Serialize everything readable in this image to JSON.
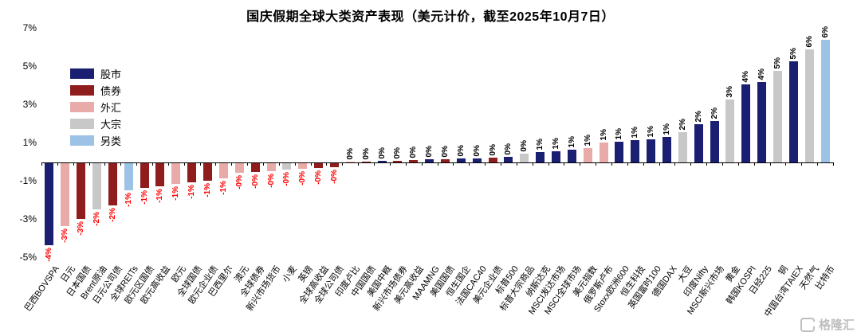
{
  "title": "国庆假期全球大类资产表现（美元计价，截至2025年10月7日）",
  "watermark": "格隆汇",
  "colors": {
    "negative_value": "#FF0000",
    "positive_value": "#000000",
    "axis": "#000000",
    "watermark": "#BEBEBE"
  },
  "legend": [
    {
      "key": "stocks",
      "label": "股市",
      "color": "#1A1F71"
    },
    {
      "key": "bonds",
      "label": "债券",
      "color": "#8F1D1D"
    },
    {
      "key": "fx",
      "label": "外汇",
      "color": "#E8ABA9"
    },
    {
      "key": "commodity",
      "label": "大宗",
      "color": "#C8C8C8"
    },
    {
      "key": "alternative",
      "label": "另类",
      "color": "#9CC2E5"
    }
  ],
  "chart_data": {
    "type": "bar",
    "title": "国庆假期全球大类资产表现（美元计价，截至2025年10月7日）",
    "ylim": [
      -5,
      7
    ],
    "yticks": [
      7,
      5,
      3,
      1,
      -1,
      -3,
      -5
    ],
    "unit": "%",
    "grid": false,
    "legend_position": "top-left",
    "bars": [
      {
        "name": "巴西BOVSPA",
        "category": "stocks",
        "value": -4.3,
        "label": "-4%"
      },
      {
        "name": "日元",
        "category": "fx",
        "value": -3.3,
        "label": "-3%"
      },
      {
        "name": "日本国债",
        "category": "bonds",
        "value": -2.9,
        "label": "-3%"
      },
      {
        "name": "Brent原油",
        "category": "commodity",
        "value": -2.4,
        "label": "-2%"
      },
      {
        "name": "日元公司债",
        "category": "bonds",
        "value": -2.2,
        "label": "-2%"
      },
      {
        "name": "全球REITs",
        "category": "alternative",
        "value": -1.4,
        "label": "-1%"
      },
      {
        "name": "欧元区国债",
        "category": "bonds",
        "value": -1.3,
        "label": "-1%"
      },
      {
        "name": "欧元高收益",
        "category": "bonds",
        "value": -1.2,
        "label": "-1%"
      },
      {
        "name": "欧元",
        "category": "fx",
        "value": -1.1,
        "label": "-1%"
      },
      {
        "name": "全球国债",
        "category": "bonds",
        "value": -1.0,
        "label": "-1%"
      },
      {
        "name": "欧元企业债",
        "category": "bonds",
        "value": -0.9,
        "label": "-1%"
      },
      {
        "name": "巴西里尔",
        "category": "fx",
        "value": -0.8,
        "label": "-1%"
      },
      {
        "name": "澳元",
        "category": "fx",
        "value": -0.5,
        "label": "-0%"
      },
      {
        "name": "全球债券",
        "category": "bonds",
        "value": -0.45,
        "label": "-0%"
      },
      {
        "name": "新兴市场货币",
        "category": "fx",
        "value": -0.4,
        "label": "-0%"
      },
      {
        "name": "小麦",
        "category": "commodity",
        "value": -0.35,
        "label": "-0%"
      },
      {
        "name": "英镑",
        "category": "fx",
        "value": -0.3,
        "label": "-0%"
      },
      {
        "name": "全球高收益",
        "category": "bonds",
        "value": -0.25,
        "label": "-0%"
      },
      {
        "name": "全球公司债",
        "category": "bonds",
        "value": -0.2,
        "label": "-0%"
      },
      {
        "name": "印度卢比",
        "category": "fx",
        "value": 0.03,
        "label": "0%"
      },
      {
        "name": "中国国债",
        "category": "bonds",
        "value": 0.05,
        "label": "0%"
      },
      {
        "name": "美国中概",
        "category": "stocks",
        "value": 0.08,
        "label": "0%"
      },
      {
        "name": "新兴市场债券",
        "category": "bonds",
        "value": 0.1,
        "label": "0%"
      },
      {
        "name": "美元高收益",
        "category": "bonds",
        "value": 0.12,
        "label": "0%"
      },
      {
        "name": "MAAMNG",
        "category": "stocks",
        "value": 0.15,
        "label": "0%"
      },
      {
        "name": "美国国债",
        "category": "bonds",
        "value": 0.15,
        "label": "0%"
      },
      {
        "name": "恒生国企",
        "category": "stocks",
        "value": 0.2,
        "label": "0%"
      },
      {
        "name": "法国CAC40",
        "category": "stocks",
        "value": 0.22,
        "label": "0%"
      },
      {
        "name": "美元企业债",
        "category": "bonds",
        "value": 0.25,
        "label": "0%"
      },
      {
        "name": "标普500",
        "category": "stocks",
        "value": 0.3,
        "label": "0%"
      },
      {
        "name": "标普大宗商品",
        "category": "commodity",
        "value": 0.45,
        "label": "0%"
      },
      {
        "name": "纳斯达克",
        "category": "stocks",
        "value": 0.55,
        "label": "1%"
      },
      {
        "name": "MSCI发达市场",
        "category": "stocks",
        "value": 0.6,
        "label": "1%"
      },
      {
        "name": "MSCI全球市场",
        "category": "stocks",
        "value": 0.65,
        "label": "1%"
      },
      {
        "name": "美元指数",
        "category": "fx",
        "value": 0.75,
        "label": "1%"
      },
      {
        "name": "俄罗斯卢布",
        "category": "fx",
        "value": 1.05,
        "label": "1%"
      },
      {
        "name": "Stoxx欧洲600",
        "category": "stocks",
        "value": 1.1,
        "label": "1%"
      },
      {
        "name": "恒生科技",
        "category": "stocks",
        "value": 1.15,
        "label": "1%"
      },
      {
        "name": "英国富时100",
        "category": "stocks",
        "value": 1.2,
        "label": "1%"
      },
      {
        "name": "德国DAX",
        "category": "stocks",
        "value": 1.35,
        "label": "1%"
      },
      {
        "name": "大豆",
        "category": "commodity",
        "value": 1.6,
        "label": "2%"
      },
      {
        "name": "印度Nifty",
        "category": "stocks",
        "value": 2.0,
        "label": "2%"
      },
      {
        "name": "MSCI新兴市场",
        "category": "stocks",
        "value": 2.15,
        "label": "2%"
      },
      {
        "name": "黄金",
        "category": "commodity",
        "value": 3.3,
        "label": "3%"
      },
      {
        "name": "韩国KOSPI",
        "category": "stocks",
        "value": 4.1,
        "label": "4%"
      },
      {
        "name": "日经225",
        "category": "stocks",
        "value": 4.2,
        "label": "4%"
      },
      {
        "name": "铜",
        "category": "commodity",
        "value": 4.8,
        "label": "5%"
      },
      {
        "name": "中国台湾TAIEX",
        "category": "stocks",
        "value": 5.3,
        "label": "5%"
      },
      {
        "name": "天然气",
        "category": "commodity",
        "value": 5.9,
        "label": "6%"
      },
      {
        "name": "比特币",
        "category": "alternative",
        "value": 6.4,
        "label": "6%"
      }
    ]
  }
}
